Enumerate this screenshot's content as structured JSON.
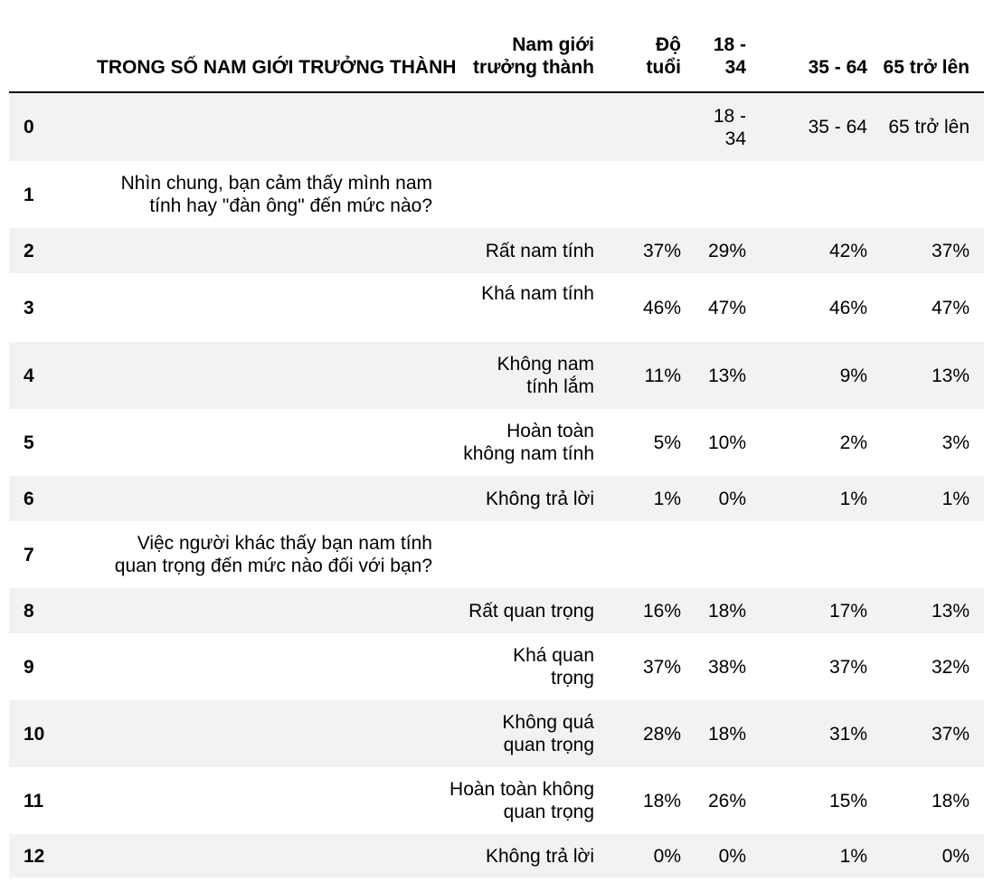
{
  "table": {
    "headers": {
      "index": "",
      "question": "TRONG SỐ NAM GIỚI TRƯỞNG THÀNH",
      "answer": [
        "Nam giới",
        "trưởng thành"
      ],
      "age": [
        "Độ",
        "tuổi"
      ],
      "g1834": [
        "18 -",
        "34"
      ],
      "g3564": "35 - 64",
      "g65": "65 trở lên"
    },
    "rows": [
      {
        "idx": "0",
        "question": "",
        "answer": [
          ""
        ],
        "age": "",
        "g1834": [
          "18 -",
          "34"
        ],
        "g3564": "35 - 64",
        "g65": "65 trở lên"
      },
      {
        "idx": "1",
        "question": [
          "Nhìn chung, bạn cảm thấy mình nam",
          "tính hay \"đàn ông\" đến mức nào?"
        ],
        "answer": [
          ""
        ],
        "age": "",
        "g1834": [
          ""
        ],
        "g3564": "",
        "g65": ""
      },
      {
        "idx": "2",
        "question": [
          ""
        ],
        "answer": [
          "Rất nam tính"
        ],
        "age": "37%",
        "g1834": [
          "29%"
        ],
        "g3564": "42%",
        "g65": "37%"
      },
      {
        "idx": "3",
        "question": [
          ""
        ],
        "answer": [
          "Khá nam tính"
        ],
        "age": "46%",
        "g1834": [
          "47%"
        ],
        "g3564": "46%",
        "g65": "47%"
      },
      {
        "idx": "4",
        "question": [
          ""
        ],
        "answer": [
          "Không nam",
          "tính lắm"
        ],
        "age": "11%",
        "g1834": [
          "13%"
        ],
        "g3564": "9%",
        "g65": "13%"
      },
      {
        "idx": "5",
        "question": [
          ""
        ],
        "answer": [
          "Hoàn toàn",
          "không nam tính"
        ],
        "age": "5%",
        "g1834": [
          "10%"
        ],
        "g3564": "2%",
        "g65": "3%"
      },
      {
        "idx": "6",
        "question": [
          ""
        ],
        "answer": [
          "Không trả lời"
        ],
        "age": "1%",
        "g1834": [
          "0%"
        ],
        "g3564": "1%",
        "g65": "1%"
      },
      {
        "idx": "7",
        "question": [
          "Việc người khác thấy bạn nam tính",
          "quan trọng đến mức nào đối với bạn?"
        ],
        "answer": [
          ""
        ],
        "age": "",
        "g1834": [
          ""
        ],
        "g3564": "",
        "g65": ""
      },
      {
        "idx": "8",
        "question": [
          ""
        ],
        "answer": [
          "Rất quan trọng"
        ],
        "age": "16%",
        "g1834": [
          "18%"
        ],
        "g3564": "17%",
        "g65": "13%"
      },
      {
        "idx": "9",
        "question": [
          ""
        ],
        "answer": [
          "Khá quan",
          "trọng"
        ],
        "age": "37%",
        "g1834": [
          "38%"
        ],
        "g3564": "37%",
        "g65": "32%"
      },
      {
        "idx": "10",
        "question": [
          ""
        ],
        "answer": [
          "Không quá",
          "quan trọng"
        ],
        "age": "28%",
        "g1834": [
          "18%"
        ],
        "g3564": "31%",
        "g65": "37%"
      },
      {
        "idx": "11",
        "question": [
          ""
        ],
        "answer": [
          "Hoàn toàn không",
          "quan trọng"
        ],
        "age": "18%",
        "g1834": [
          "26%"
        ],
        "g3564": "15%",
        "g65": "18%"
      },
      {
        "idx": "12",
        "question": [
          ""
        ],
        "answer": [
          "Không trả lời"
        ],
        "age": "0%",
        "g1834": [
          "0%"
        ],
        "g3564": "1%",
        "g65": "0%"
      }
    ]
  }
}
